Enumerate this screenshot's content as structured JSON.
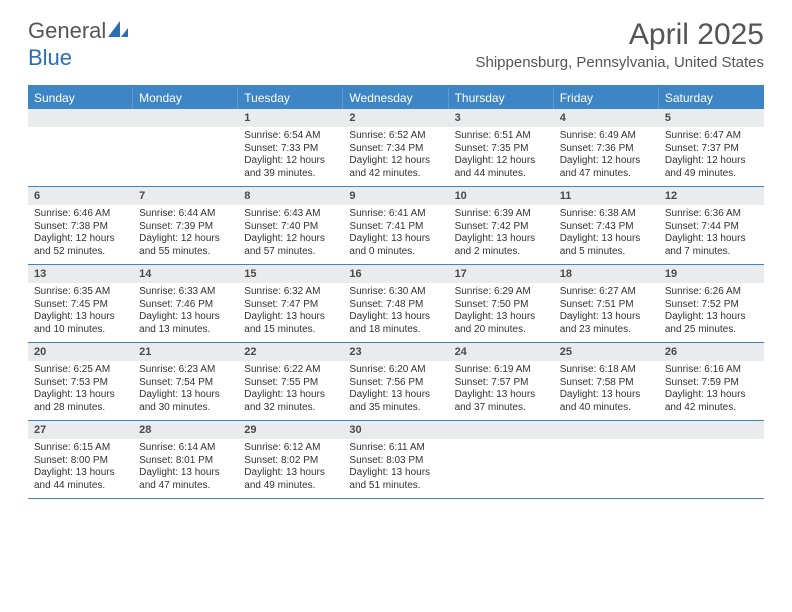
{
  "brand": {
    "part1": "General",
    "part2": "Blue"
  },
  "title": "April 2025",
  "location": "Shippensburg, Pennsylvania, United States",
  "colors": {
    "accent": "#3e85c6",
    "headerText": "#ffffff",
    "dateBg": "#e9ebed",
    "bodyText": "#333333",
    "muted": "#555555"
  },
  "days": [
    "Sunday",
    "Monday",
    "Tuesday",
    "Wednesday",
    "Thursday",
    "Friday",
    "Saturday"
  ],
  "weeks": [
    [
      null,
      null,
      {
        "n": "1",
        "sr": "6:54 AM",
        "ss": "7:33 PM",
        "dl": "12 hours and 39 minutes."
      },
      {
        "n": "2",
        "sr": "6:52 AM",
        "ss": "7:34 PM",
        "dl": "12 hours and 42 minutes."
      },
      {
        "n": "3",
        "sr": "6:51 AM",
        "ss": "7:35 PM",
        "dl": "12 hours and 44 minutes."
      },
      {
        "n": "4",
        "sr": "6:49 AM",
        "ss": "7:36 PM",
        "dl": "12 hours and 47 minutes."
      },
      {
        "n": "5",
        "sr": "6:47 AM",
        "ss": "7:37 PM",
        "dl": "12 hours and 49 minutes."
      }
    ],
    [
      {
        "n": "6",
        "sr": "6:46 AM",
        "ss": "7:38 PM",
        "dl": "12 hours and 52 minutes."
      },
      {
        "n": "7",
        "sr": "6:44 AM",
        "ss": "7:39 PM",
        "dl": "12 hours and 55 minutes."
      },
      {
        "n": "8",
        "sr": "6:43 AM",
        "ss": "7:40 PM",
        "dl": "12 hours and 57 minutes."
      },
      {
        "n": "9",
        "sr": "6:41 AM",
        "ss": "7:41 PM",
        "dl": "13 hours and 0 minutes."
      },
      {
        "n": "10",
        "sr": "6:39 AM",
        "ss": "7:42 PM",
        "dl": "13 hours and 2 minutes."
      },
      {
        "n": "11",
        "sr": "6:38 AM",
        "ss": "7:43 PM",
        "dl": "13 hours and 5 minutes."
      },
      {
        "n": "12",
        "sr": "6:36 AM",
        "ss": "7:44 PM",
        "dl": "13 hours and 7 minutes."
      }
    ],
    [
      {
        "n": "13",
        "sr": "6:35 AM",
        "ss": "7:45 PM",
        "dl": "13 hours and 10 minutes."
      },
      {
        "n": "14",
        "sr": "6:33 AM",
        "ss": "7:46 PM",
        "dl": "13 hours and 13 minutes."
      },
      {
        "n": "15",
        "sr": "6:32 AM",
        "ss": "7:47 PM",
        "dl": "13 hours and 15 minutes."
      },
      {
        "n": "16",
        "sr": "6:30 AM",
        "ss": "7:48 PM",
        "dl": "13 hours and 18 minutes."
      },
      {
        "n": "17",
        "sr": "6:29 AM",
        "ss": "7:50 PM",
        "dl": "13 hours and 20 minutes."
      },
      {
        "n": "18",
        "sr": "6:27 AM",
        "ss": "7:51 PM",
        "dl": "13 hours and 23 minutes."
      },
      {
        "n": "19",
        "sr": "6:26 AM",
        "ss": "7:52 PM",
        "dl": "13 hours and 25 minutes."
      }
    ],
    [
      {
        "n": "20",
        "sr": "6:25 AM",
        "ss": "7:53 PM",
        "dl": "13 hours and 28 minutes."
      },
      {
        "n": "21",
        "sr": "6:23 AM",
        "ss": "7:54 PM",
        "dl": "13 hours and 30 minutes."
      },
      {
        "n": "22",
        "sr": "6:22 AM",
        "ss": "7:55 PM",
        "dl": "13 hours and 32 minutes."
      },
      {
        "n": "23",
        "sr": "6:20 AM",
        "ss": "7:56 PM",
        "dl": "13 hours and 35 minutes."
      },
      {
        "n": "24",
        "sr": "6:19 AM",
        "ss": "7:57 PM",
        "dl": "13 hours and 37 minutes."
      },
      {
        "n": "25",
        "sr": "6:18 AM",
        "ss": "7:58 PM",
        "dl": "13 hours and 40 minutes."
      },
      {
        "n": "26",
        "sr": "6:16 AM",
        "ss": "7:59 PM",
        "dl": "13 hours and 42 minutes."
      }
    ],
    [
      {
        "n": "27",
        "sr": "6:15 AM",
        "ss": "8:00 PM",
        "dl": "13 hours and 44 minutes."
      },
      {
        "n": "28",
        "sr": "6:14 AM",
        "ss": "8:01 PM",
        "dl": "13 hours and 47 minutes."
      },
      {
        "n": "29",
        "sr": "6:12 AM",
        "ss": "8:02 PM",
        "dl": "13 hours and 49 minutes."
      },
      {
        "n": "30",
        "sr": "6:11 AM",
        "ss": "8:03 PM",
        "dl": "13 hours and 51 minutes."
      },
      null,
      null,
      null
    ]
  ],
  "labels": {
    "sunrise": "Sunrise:",
    "sunset": "Sunset:",
    "daylight": "Daylight:"
  }
}
